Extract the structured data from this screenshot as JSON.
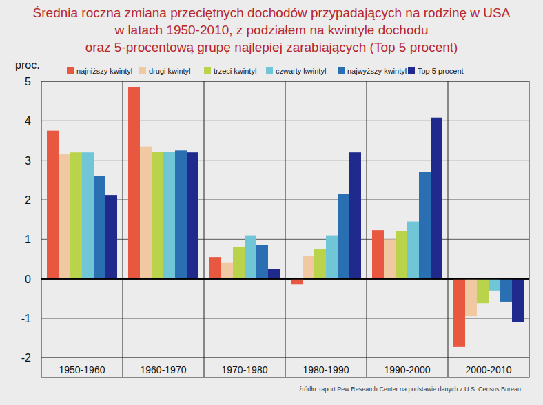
{
  "chart_data": {
    "type": "bar",
    "title": "Średnia roczna zmiana przeciętnych dochodów przypadających na rodzinę w USA\nw latach 1950-2010, z podziałem na kwintyle dochodu\noraz  5-procentową grupę najlepiej zarabiających (Top 5 procent)",
    "ylabel": "proc.",
    "annotations": [
      "źródło: raport Pew Research Center na podstawie danych z U.S. Census Bureau"
    ],
    "categories": [
      "1950-1960",
      "1960-1970",
      "1970-1980",
      "1980-1990",
      "1990-2000",
      "2000-2010"
    ],
    "series": [
      {
        "name": "najniższy kwintyl",
        "color": "#e8573f",
        "values": [
          3.75,
          4.85,
          0.55,
          -0.15,
          1.23,
          -1.73
        ]
      },
      {
        "name": "drugi kwintyl",
        "color": "#f0c9a2",
        "values": [
          3.15,
          3.35,
          0.4,
          0.57,
          1.0,
          -0.95
        ]
      },
      {
        "name": "trzeci kwintyl",
        "color": "#b9d44a",
        "values": [
          3.2,
          3.22,
          0.8,
          0.76,
          1.2,
          -0.62
        ]
      },
      {
        "name": "czwarty kwintyl",
        "color": "#70c6d6",
        "values": [
          3.2,
          3.22,
          1.1,
          1.1,
          1.45,
          -0.3
        ]
      },
      {
        "name": "najwyższy kwintyl",
        "color": "#2a6fb2",
        "values": [
          2.6,
          3.25,
          0.85,
          2.15,
          2.7,
          -0.58
        ]
      },
      {
        "name": "Top 5 procent",
        "color": "#1f2a8c",
        "values": [
          2.12,
          3.2,
          0.25,
          3.2,
          4.08,
          -1.1
        ]
      }
    ],
    "ylim": [
      -2.5,
      5
    ],
    "yticks": [
      -2,
      -1,
      0,
      1,
      2,
      3,
      4,
      5
    ],
    "grid": true,
    "legend": "top"
  }
}
